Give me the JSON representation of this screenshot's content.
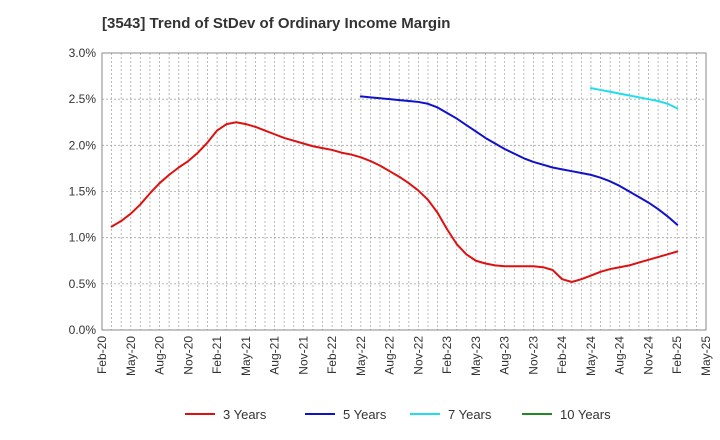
{
  "chart_data": {
    "type": "line",
    "title": "[3543]  Trend of StDev of Ordinary Income Margin",
    "xlabel": "",
    "ylabel": "",
    "ylim": [
      0,
      3.0
    ],
    "y_ticks": [
      "0.0%",
      "0.5%",
      "1.0%",
      "1.5%",
      "2.0%",
      "2.5%",
      "3.0%"
    ],
    "y_tick_values": [
      0,
      0.5,
      1.0,
      1.5,
      2.0,
      2.5,
      3.0
    ],
    "x_ticks": [
      "Feb-20",
      "May-20",
      "Aug-20",
      "Nov-20",
      "Feb-21",
      "May-21",
      "Aug-21",
      "Nov-21",
      "Feb-22",
      "May-22",
      "Aug-22",
      "Nov-22",
      "Feb-23",
      "May-23",
      "Aug-23",
      "Nov-23",
      "Feb-24",
      "May-24",
      "Aug-24",
      "Nov-24",
      "Feb-25",
      "May-25"
    ],
    "grid": true,
    "legend_position": "bottom",
    "series": [
      {
        "name": "3 Years",
        "color": "#dd1111",
        "x": [
          "Mar-20",
          "Apr-20",
          "May-20",
          "Jun-20",
          "Jul-20",
          "Aug-20",
          "Sep-20",
          "Oct-20",
          "Nov-20",
          "Dec-20",
          "Jan-21",
          "Feb-21",
          "Mar-21",
          "Apr-21",
          "May-21",
          "Jun-21",
          "Jul-21",
          "Aug-21",
          "Sep-21",
          "Oct-21",
          "Nov-21",
          "Dec-21",
          "Jan-22",
          "Feb-22",
          "Mar-22",
          "Apr-22",
          "May-22",
          "Jun-22",
          "Jul-22",
          "Aug-22",
          "Sep-22",
          "Oct-22",
          "Nov-22",
          "Dec-22",
          "Jan-23",
          "Feb-23",
          "Mar-23",
          "Apr-23",
          "May-23",
          "Jun-23",
          "Jul-23",
          "Aug-23",
          "Sep-23",
          "Oct-23",
          "Nov-23",
          "Dec-23",
          "Jan-24",
          "Feb-24",
          "Mar-24",
          "Apr-24",
          "May-24",
          "Jun-24",
          "Jul-24",
          "Aug-24",
          "Sep-24",
          "Oct-24",
          "Nov-24",
          "Dec-24",
          "Jan-25",
          "Feb-25"
        ],
        "values": [
          1.12,
          1.18,
          1.26,
          1.36,
          1.48,
          1.59,
          1.68,
          1.76,
          1.83,
          1.92,
          2.03,
          2.16,
          2.23,
          2.25,
          2.23,
          2.2,
          2.16,
          2.12,
          2.08,
          2.05,
          2.02,
          1.99,
          1.97,
          1.95,
          1.92,
          1.9,
          1.87,
          1.83,
          1.78,
          1.72,
          1.66,
          1.59,
          1.51,
          1.41,
          1.27,
          1.09,
          0.93,
          0.82,
          0.75,
          0.72,
          0.7,
          0.69,
          0.69,
          0.69,
          0.69,
          0.68,
          0.65,
          0.55,
          0.52,
          0.55,
          0.59,
          0.63,
          0.66,
          0.68,
          0.7,
          0.73,
          0.76,
          0.79,
          0.82,
          0.85
        ]
      },
      {
        "name": "5 Years",
        "color": "#1111cc",
        "x": [
          "May-22",
          "Jun-22",
          "Jul-22",
          "Aug-22",
          "Sep-22",
          "Oct-22",
          "Nov-22",
          "Dec-22",
          "Jan-23",
          "Feb-23",
          "Mar-23",
          "Apr-23",
          "May-23",
          "Jun-23",
          "Jul-23",
          "Aug-23",
          "Sep-23",
          "Oct-23",
          "Nov-23",
          "Dec-23",
          "Jan-24",
          "Feb-24",
          "Mar-24",
          "Apr-24",
          "May-24",
          "Jun-24",
          "Jul-24",
          "Aug-24",
          "Sep-24",
          "Oct-24",
          "Nov-24",
          "Dec-24",
          "Jan-25",
          "Feb-25"
        ],
        "values": [
          2.53,
          2.52,
          2.51,
          2.5,
          2.49,
          2.48,
          2.47,
          2.45,
          2.41,
          2.35,
          2.29,
          2.22,
          2.15,
          2.08,
          2.02,
          1.96,
          1.91,
          1.86,
          1.82,
          1.79,
          1.76,
          1.74,
          1.72,
          1.7,
          1.68,
          1.65,
          1.61,
          1.56,
          1.5,
          1.44,
          1.38,
          1.31,
          1.23,
          1.14
        ]
      },
      {
        "name": "7 Years",
        "color": "#22ddee",
        "x": [
          "May-24",
          "Jun-24",
          "Jul-24",
          "Aug-24",
          "Sep-24",
          "Oct-24",
          "Nov-24",
          "Dec-24",
          "Jan-25",
          "Feb-25"
        ],
        "values": [
          2.62,
          2.6,
          2.58,
          2.56,
          2.54,
          2.52,
          2.5,
          2.48,
          2.45,
          2.4
        ]
      },
      {
        "name": "10 Years",
        "color": "#228822",
        "x": [],
        "values": []
      }
    ]
  }
}
